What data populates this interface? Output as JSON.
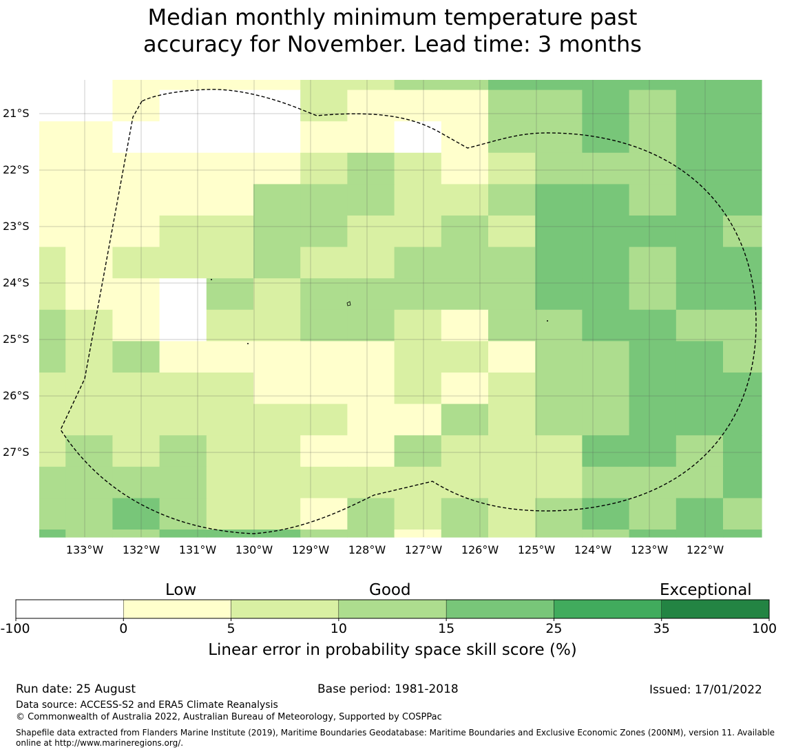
{
  "title_line1": "Median monthly minimum temperature past",
  "title_line2": "accuracy for November. Lead time: 3 months",
  "lat_labels": [
    "21°S",
    "22°S",
    "23°S",
    "24°S",
    "25°S",
    "26°S",
    "27°S"
  ],
  "lon_labels": [
    "133°W",
    "132°W",
    "131°W",
    "130°W",
    "129°W",
    "128°W",
    "127°W",
    "126°W",
    "125°W",
    "124°W",
    "123°W",
    "122°W"
  ],
  "colorbar": {
    "category_labels": [
      "Low",
      "Good",
      "Exceptional"
    ],
    "tick_labels": [
      "-100",
      "0",
      "5",
      "10",
      "15",
      "25",
      "35",
      "100"
    ],
    "colors": [
      "#ffffff",
      "#ffffcc",
      "#d9f0a3",
      "#addd8e",
      "#78c679",
      "#41ab5d",
      "#238443"
    ],
    "label": "Linear error in probability space skill score (%)"
  },
  "footer": {
    "run_date": "Run date: 25 August",
    "base_period": "Base period: 1981-2018",
    "issued": "Issued: 17/01/2022",
    "data_source": "Data source: ACCESS-S2 and ERA5 Climate Reanalysis",
    "copyright": "© Commonwealth of Australia 2022, Australian Bureau of Meteorology, Supported by COSPPac",
    "shapefile_note": "Shapefile data extracted from Flanders Marine Institute (2019), Maritime Boundaries Geodatabase: Maritime Boundaries and Exclusive Economic Zones (200NM), version 11. Available online at http://www.marineregions.org/."
  },
  "grid_categories": [
    [
      0,
      0,
      1,
      1,
      1,
      1,
      2,
      2,
      3,
      3,
      4,
      4,
      4,
      4,
      4,
      4
    ],
    [
      0,
      0,
      1,
      0,
      0,
      0,
      2,
      1,
      1,
      1,
      3,
      3,
      4,
      3,
      4,
      4
    ],
    [
      1,
      1,
      0,
      0,
      0,
      0,
      1,
      1,
      0,
      1,
      3,
      3,
      4,
      3,
      4,
      4
    ],
    [
      1,
      1,
      1,
      1,
      1,
      1,
      2,
      3,
      2,
      1,
      2,
      3,
      3,
      3,
      4,
      4
    ],
    [
      1,
      1,
      1,
      1,
      1,
      3,
      3,
      3,
      2,
      2,
      3,
      4,
      4,
      3,
      4,
      4
    ],
    [
      1,
      1,
      1,
      2,
      2,
      3,
      3,
      2,
      2,
      3,
      2,
      4,
      4,
      4,
      4,
      3
    ],
    [
      2,
      1,
      2,
      2,
      2,
      3,
      2,
      2,
      3,
      3,
      3,
      4,
      4,
      3,
      4,
      4
    ],
    [
      2,
      1,
      1,
      0,
      3,
      2,
      3,
      3,
      3,
      3,
      3,
      4,
      4,
      3,
      4,
      4
    ],
    [
      3,
      2,
      1,
      0,
      2,
      2,
      3,
      3,
      2,
      1,
      3,
      3,
      4,
      4,
      3,
      3
    ],
    [
      3,
      2,
      3,
      1,
      1,
      1,
      1,
      1,
      2,
      2,
      1,
      3,
      3,
      4,
      4,
      3
    ],
    [
      2,
      2,
      2,
      2,
      2,
      1,
      1,
      1,
      2,
      1,
      2,
      3,
      3,
      4,
      4,
      4
    ],
    [
      2,
      2,
      2,
      2,
      2,
      2,
      2,
      1,
      1,
      3,
      2,
      3,
      3,
      4,
      4,
      4
    ],
    [
      2,
      3,
      2,
      3,
      2,
      2,
      1,
      1,
      3,
      2,
      2,
      2,
      4,
      4,
      3,
      4
    ],
    [
      3,
      3,
      3,
      3,
      2,
      2,
      2,
      2,
      2,
      2,
      2,
      2,
      3,
      3,
      3,
      4
    ],
    [
      3,
      3,
      4,
      3,
      2,
      2,
      1,
      3,
      2,
      3,
      2,
      3,
      4,
      3,
      4,
      3
    ],
    [
      4,
      3,
      3,
      4,
      4,
      4,
      3,
      3,
      1,
      3,
      2,
      3,
      3,
      4,
      4,
      4
    ]
  ]
}
